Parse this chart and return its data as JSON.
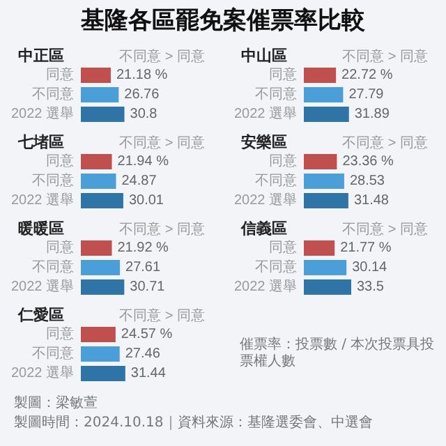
{
  "chart_data": [
    {
      "type": "other",
      "title": "基隆各區罷免案催票率比較",
      "annotations": [
        "催票率：投票數 / 本次投票具投票權人數",
        "製圖：梁敏萱",
        "製圖時間：2024.10.18｜資料來源：基隆選委會、中選會"
      ]
    },
    {
      "type": "bar",
      "orientation": "horizontal",
      "title": "中正區",
      "subtitle": "不同意 > 同意",
      "categories": [
        "同意",
        "不同意",
        "2022 選舉"
      ],
      "values": [
        21.18,
        26.76,
        30.8
      ],
      "value_labels": [
        "21.18 %",
        "26.76",
        "30.8"
      ],
      "colors": [
        "#c0504d",
        "#4a9fd8",
        "#2e74a6"
      ],
      "tick_labels": "y"
    },
    {
      "type": "bar",
      "orientation": "horizontal",
      "title": "中山區",
      "subtitle": "不同意 > 同意",
      "categories": [
        "同意",
        "不同意",
        "2022 選舉"
      ],
      "values": [
        22.72,
        27.79,
        31.89
      ],
      "value_labels": [
        "22.72 %",
        "27.79",
        "31.89"
      ],
      "colors": [
        "#c0504d",
        "#4a9fd8",
        "#2e74a6"
      ],
      "tick_labels": "y"
    },
    {
      "type": "bar",
      "orientation": "horizontal",
      "title": "七堵區",
      "subtitle": "不同意 > 同意",
      "categories": [
        "同意",
        "不同意",
        "2022 選舉"
      ],
      "values": [
        21.94,
        24.87,
        30.01
      ],
      "value_labels": [
        "21.94 %",
        "24.87",
        "30.01"
      ],
      "colors": [
        "#c0504d",
        "#4a9fd8",
        "#2e74a6"
      ],
      "tick_labels": "y"
    },
    {
      "type": "bar",
      "orientation": "horizontal",
      "title": "安樂區",
      "subtitle": "不同意 > 同意",
      "categories": [
        "同意",
        "不同意",
        "2022 選舉"
      ],
      "values": [
        23.36,
        28.53,
        31.48
      ],
      "value_labels": [
        "23.36 %",
        "28.53",
        "31.48"
      ],
      "colors": [
        "#c0504d",
        "#4a9fd8",
        "#2e74a6"
      ],
      "tick_labels": "y"
    },
    {
      "type": "bar",
      "orientation": "horizontal",
      "title": "暖暖區",
      "subtitle": "不同意 > 同意",
      "categories": [
        "同意",
        "不同意",
        "2022 選舉"
      ],
      "values": [
        21.92,
        27.61,
        30.71
      ],
      "value_labels": [
        "21.92 %",
        "27.61",
        "30.71"
      ],
      "colors": [
        "#c0504d",
        "#4a9fd8",
        "#2e74a6"
      ],
      "tick_labels": "y"
    },
    {
      "type": "bar",
      "orientation": "horizontal",
      "title": "信義區",
      "subtitle": "不同意 > 同意",
      "categories": [
        "同意",
        "不同意",
        "2022 選舉"
      ],
      "values": [
        21.77,
        30.14,
        33.5
      ],
      "value_labels": [
        "21.77 %",
        "30.14",
        "33.5"
      ],
      "colors": [
        "#c0504d",
        "#4a9fd8",
        "#2e74a6"
      ],
      "tick_labels": "y"
    },
    {
      "type": "bar",
      "orientation": "horizontal",
      "title": "仁愛區",
      "subtitle": "不同意 > 同意",
      "categories": [
        "同意",
        "不同意",
        "2022 選舉"
      ],
      "values": [
        24.57,
        27.46,
        31.44
      ],
      "value_labels": [
        "24.57 %",
        "27.46",
        "31.44"
      ],
      "colors": [
        "#c0504d",
        "#4a9fd8",
        "#2e74a6"
      ],
      "tick_labels": "y"
    }
  ]
}
